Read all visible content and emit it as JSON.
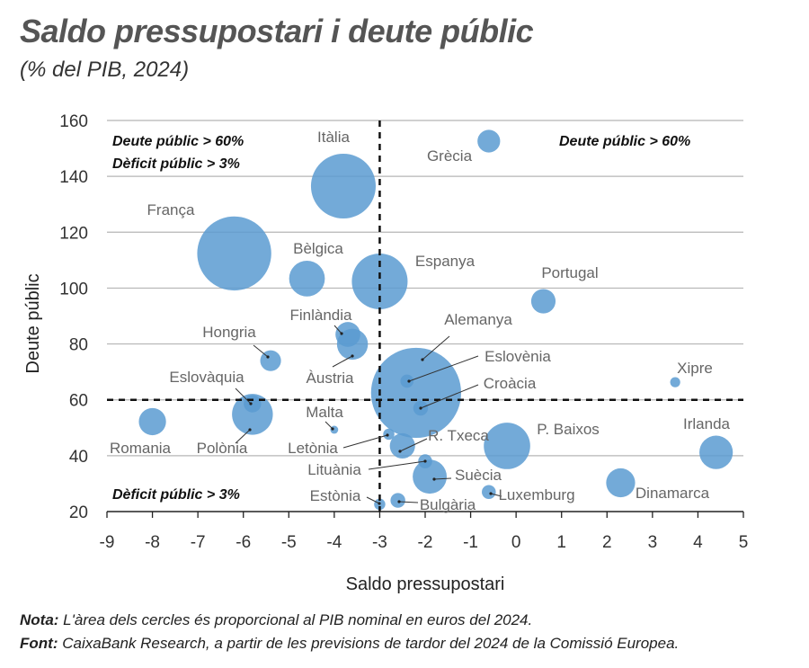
{
  "title": "Saldo pressupostari i deute públic",
  "subtitle": "(% del PIB, 2024)",
  "notes": {
    "note_label": "Nota:",
    "note_text": " L'àrea dels cercles és proporcional al PIB nominal en euros del 2024.",
    "source_label": "Font:",
    "source_text": " CaixaBank Research, a partir de les previsions de tardor del 2024 de la Comissió Europea."
  },
  "chart_data": {
    "type": "scatter",
    "subtype": "bubble",
    "xlabel": "Saldo pressupostari",
    "ylabel": "Deute públic",
    "xlim": [
      -9,
      5
    ],
    "ylim": [
      20,
      160
    ],
    "xticks": [
      -9,
      -8,
      -7,
      -6,
      -5,
      -4,
      -3,
      -2,
      -1,
      0,
      1,
      2,
      3,
      4,
      5
    ],
    "yticks": [
      20,
      40,
      60,
      80,
      100,
      120,
      140,
      160
    ],
    "grid": "horizontal",
    "reference_lines": {
      "x": -3,
      "y": 60
    },
    "bubble_color": "#5b9bd1",
    "annotations": [
      {
        "text_lines": [
          "Deute públic > 60%",
          "Dèficit públic > 3%"
        ],
        "quadrant": "top-left"
      },
      {
        "text_lines": [
          "Deute públic > 60%"
        ],
        "quadrant": "top-right"
      },
      {
        "text_lines": [
          "Dèficit públic > 3%"
        ],
        "quadrant": "bottom-left"
      }
    ],
    "points": [
      {
        "name": "Itàlia",
        "x": -3.8,
        "y": 136.5,
        "size": 21.2
      },
      {
        "name": "França",
        "x": -6.2,
        "y": 112.4,
        "size": 28.0
      },
      {
        "name": "Grècia",
        "x": -0.6,
        "y": 152.6,
        "size": 2.2
      },
      {
        "name": "Bèlgica",
        "x": -4.6,
        "y": 103.4,
        "size": 6.0
      },
      {
        "name": "Espanya",
        "x": -3.0,
        "y": 102.4,
        "size": 15.5
      },
      {
        "name": "Portugal",
        "x": 0.6,
        "y": 95.3,
        "size": 2.6
      },
      {
        "name": "Alemanya",
        "x": -2.2,
        "y": 62.5,
        "size": 42.0
      },
      {
        "name": "Finlàndia",
        "x": -3.7,
        "y": 83.4,
        "size": 2.7
      },
      {
        "name": "Àustria",
        "x": -3.6,
        "y": 79.9,
        "size": 4.4
      },
      {
        "name": "Hongria",
        "x": -5.4,
        "y": 74.0,
        "size": 1.8
      },
      {
        "name": "Eslovènia",
        "x": -2.4,
        "y": 66.7,
        "size": 0.6
      },
      {
        "name": "Croàcia",
        "x": -2.1,
        "y": 57.0,
        "size": 0.8
      },
      {
        "name": "Xipre",
        "x": 3.5,
        "y": 66.3,
        "size": 0.3
      },
      {
        "name": "Eslovàquia",
        "x": -5.8,
        "y": 58.6,
        "size": 1.2
      },
      {
        "name": "Polònia",
        "x": -5.8,
        "y": 54.8,
        "size": 8.0
      },
      {
        "name": "Romania",
        "x": -8.0,
        "y": 52.2,
        "size": 3.3
      },
      {
        "name": "Malta",
        "x": -4.0,
        "y": 49.3,
        "size": 0.15
      },
      {
        "name": "Letònia",
        "x": -2.8,
        "y": 47.7,
        "size": 0.4
      },
      {
        "name": "R. Txeca",
        "x": -2.5,
        "y": 43.5,
        "size": 2.8
      },
      {
        "name": "Lituània",
        "x": -2.0,
        "y": 38.0,
        "size": 0.7
      },
      {
        "name": "Suècia",
        "x": -1.9,
        "y": 32.5,
        "size": 5.4
      },
      {
        "name": "P. Baixos",
        "x": -0.2,
        "y": 43.5,
        "size": 10.5
      },
      {
        "name": "Irlanda",
        "x": 4.4,
        "y": 41.2,
        "size": 5.2
      },
      {
        "name": "Dinamarca",
        "x": 2.3,
        "y": 30.3,
        "size": 3.8
      },
      {
        "name": "Luxemburg",
        "x": -0.6,
        "y": 27.0,
        "size": 0.7
      },
      {
        "name": "Bulgària",
        "x": -2.6,
        "y": 24.0,
        "size": 0.8
      },
      {
        "name": "Estònia",
        "x": -3.0,
        "y": 22.6,
        "size": 0.4
      }
    ]
  }
}
